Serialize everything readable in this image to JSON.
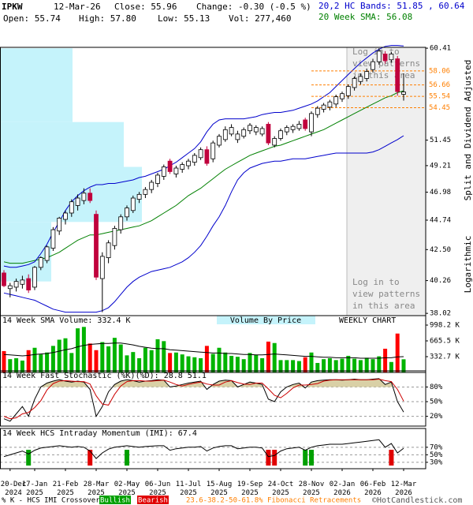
{
  "header": {
    "symbol": "IPKW",
    "date": "12-Mar-26",
    "close": "Close: 55.96",
    "change": "Change: -0.30 (-0.5 %)",
    "open": "Open: 55.74",
    "high": "High: 57.80",
    "low": "Low: 55.13",
    "volume": "Vol: 277,460"
  },
  "axis_notes": [
    "Split and Dividend Adjusted",
    "Logarithmic"
  ],
  "footer": {
    "copyright": "©HotCandlestick.com"
  },
  "chart_data": [
    {
      "type": "candlestick",
      "log_scale": true,
      "categories": [
        null,
        "20-Dec 2024",
        null,
        null,
        null,
        "17-Jan 2025",
        null,
        null,
        null,
        null,
        "21-Feb 2025",
        null,
        null,
        null,
        null,
        "28-Mar 2025",
        null,
        null,
        null,
        null,
        "02-May 2025",
        null,
        null,
        null,
        null,
        "06-Jun 2025",
        null,
        null,
        null,
        null,
        "11-Jul 2025",
        null,
        null,
        null,
        null,
        "15-Aug 2025",
        null,
        null,
        null,
        null,
        "19-Sep 2025",
        null,
        null,
        null,
        null,
        "24-Oct 2025",
        null,
        null,
        null,
        null,
        "28-Nov 2025",
        null,
        null,
        null,
        null,
        "02-Jan 2026",
        null,
        null,
        null,
        null,
        "06-Feb 2026",
        null,
        null,
        null,
        null,
        "12-Mar 2026"
      ],
      "open": [
        40.8,
        39.7,
        39.8,
        40.0,
        40.4,
        39.8,
        41.2,
        41.7,
        42.6,
        43.9,
        44.8,
        45.3,
        45.9,
        46.3,
        46.9,
        45.2,
        40.4,
        41.9,
        42.8,
        44.0,
        45.0,
        45.5,
        46.4,
        46.8,
        47.2,
        47.7,
        48.3,
        49.6,
        48.5,
        48.9,
        49.2,
        49.5,
        49.9,
        50.6,
        49.8,
        51.0,
        51.5,
        52.0,
        51.5,
        51.8,
        52.3,
        52.2,
        52.0,
        52.9,
        51.0,
        51.6,
        52.2,
        52.4,
        52.5,
        53.3,
        52.2,
        53.8,
        54.3,
        54.5,
        54.8,
        55.3,
        55.6,
        56.4,
        57.0,
        57.3,
        58.2,
        59.0,
        59.8,
        59.2,
        59.3,
        55.74
      ],
      "high": [
        41.0,
        40.1,
        40.4,
        40.6,
        40.7,
        41.3,
        42.0,
        42.8,
        44.2,
        45.0,
        45.5,
        46.4,
        46.8,
        47.3,
        47.3,
        45.5,
        42.3,
        43.2,
        44.3,
        45.2,
        45.9,
        46.7,
        47.0,
        47.4,
        48.0,
        48.6,
        49.3,
        49.8,
        49.2,
        49.5,
        49.8,
        50.3,
        50.8,
        50.9,
        51.4,
        52.0,
        52.7,
        52.9,
        52.3,
        52.6,
        53.0,
        52.8,
        52.7,
        53.1,
        51.8,
        52.5,
        52.8,
        52.9,
        53.2,
        53.5,
        54.1,
        54.6,
        54.9,
        55.2,
        55.7,
        56.0,
        56.7,
        57.5,
        57.8,
        58.3,
        59.3,
        60.4,
        60.1,
        60.0,
        59.6,
        57.8
      ],
      "low": [
        39.8,
        39.1,
        39.5,
        39.7,
        39.4,
        39.6,
        41.0,
        41.5,
        42.4,
        43.6,
        44.4,
        45.0,
        45.5,
        46.0,
        46.1,
        40.3,
        38.1,
        41.5,
        42.5,
        43.7,
        44.7,
        45.3,
        46.1,
        46.5,
        46.9,
        47.4,
        48.0,
        48.5,
        48.2,
        48.6,
        48.9,
        49.2,
        49.7,
        49.2,
        49.5,
        50.8,
        51.3,
        51.8,
        51.2,
        51.6,
        52.0,
        51.9,
        51.8,
        51.0,
        50.8,
        51.4,
        51.9,
        52.1,
        52.3,
        52.3,
        51.8,
        53.5,
        54.0,
        54.2,
        54.5,
        55.0,
        55.3,
        56.1,
        56.7,
        57.0,
        57.9,
        58.7,
        58.8,
        58.9,
        55.6,
        55.13
      ],
      "close": [
        39.9,
        39.9,
        40.2,
        40.3,
        39.6,
        41.2,
        41.9,
        42.7,
        44.0,
        44.9,
        45.3,
        46.2,
        46.5,
        46.9,
        46.3,
        40.5,
        42.0,
        43.0,
        44.1,
        45.0,
        45.7,
        46.5,
        46.8,
        47.2,
        47.8,
        48.4,
        49.1,
        48.7,
        49.0,
        49.3,
        49.6,
        50.1,
        50.6,
        49.4,
        51.2,
        51.8,
        52.4,
        52.6,
        52.0,
        52.4,
        52.8,
        52.6,
        52.5,
        51.2,
        51.6,
        52.3,
        52.6,
        52.7,
        52.9,
        52.5,
        53.9,
        54.4,
        54.7,
        55.0,
        55.5,
        55.8,
        56.5,
        57.3,
        57.5,
        58.0,
        59.0,
        60.1,
        59.1,
        59.8,
        56.0,
        55.96
      ],
      "up_color": "#ffffff",
      "down_color": "#c0003c",
      "series": [
        {
          "name": "20 Week SMA: 56.08",
          "color": "#008000",
          "values": [
            41.6,
            41.5,
            41.5,
            41.5,
            41.6,
            41.7,
            41.8,
            41.9,
            42.1,
            42.3,
            42.6,
            42.9,
            43.2,
            43.4,
            43.6,
            43.6,
            43.7,
            43.8,
            43.9,
            44.0,
            44.1,
            44.2,
            44.3,
            44.5,
            44.7,
            45.0,
            45.3,
            45.6,
            45.9,
            46.3,
            46.7,
            47.0,
            47.3,
            47.7,
            48.1,
            48.5,
            48.9,
            49.2,
            49.5,
            49.8,
            50.1,
            50.3,
            50.5,
            50.7,
            50.9,
            51.0,
            51.2,
            51.4,
            51.6,
            51.8,
            52.0,
            52.2,
            52.4,
            52.7,
            53.0,
            53.3,
            53.6,
            53.9,
            54.2,
            54.5,
            54.8,
            55.1,
            55.4,
            55.6,
            55.9,
            56.08
          ]
        },
        {
          "name": "20,2 HC Bands: 51.85 , 60.64",
          "color": "#0000cc",
          "values": [
            41.3,
            41.2,
            41.2,
            41.3,
            41.4,
            41.6,
            42.2,
            42.9,
            43.8,
            44.6,
            45.5,
            46.2,
            46.7,
            47.1,
            47.4,
            47.6,
            47.6,
            47.7,
            47.7,
            47.8,
            47.9,
            48.0,
            48.2,
            48.3,
            48.5,
            48.7,
            48.9,
            49.2,
            49.5,
            49.9,
            50.3,
            50.7,
            51.3,
            52.2,
            52.9,
            53.3,
            53.4,
            53.4,
            53.4,
            53.4,
            53.5,
            53.6,
            53.8,
            53.9,
            54.0,
            54.0,
            54.1,
            54.2,
            54.4,
            54.6,
            54.8,
            55.1,
            55.5,
            55.9,
            56.5,
            57.1,
            57.7,
            58.3,
            58.9,
            59.4,
            59.9,
            60.3,
            60.6,
            60.7,
            60.7,
            60.64
          ],
          "lower": [
            39.4,
            39.3,
            39.2,
            39.1,
            39.0,
            38.9,
            38.7,
            38.5,
            38.3,
            38.2,
            38.1,
            38.1,
            38.1,
            38.1,
            38.1,
            38.1,
            38.2,
            38.4,
            38.8,
            39.3,
            39.8,
            40.2,
            40.5,
            40.7,
            40.9,
            41.0,
            41.1,
            41.2,
            41.4,
            41.6,
            41.9,
            42.3,
            42.8,
            43.5,
            44.3,
            45.0,
            45.9,
            47.0,
            48.0,
            48.6,
            49.0,
            49.2,
            49.4,
            49.5,
            49.6,
            49.6,
            49.7,
            49.8,
            49.8,
            49.8,
            49.9,
            50.0,
            50.1,
            50.2,
            50.3,
            50.3,
            50.3,
            50.3,
            50.3,
            50.3,
            50.4,
            50.6,
            50.9,
            51.2,
            51.5,
            51.85
          ]
        }
      ],
      "volume_by_price": {
        "bins": [
          40.2,
          44.6,
          49.1,
          53.1,
          60.4
        ],
        "values": [
          65,
          180,
          157,
          92
        ],
        "color": "#c5f3fb"
      },
      "fibonacci": {
        "name": "23.6-38.2-50-61.8% Fibonacci Retracements",
        "levels": [
          58.06,
          56.66,
          55.54,
          54.45
        ],
        "color": "#ff7f00"
      },
      "patterns_notice": [
        "Log in to",
        "view patterns",
        "in this area"
      ],
      "ylim": [
        37.87,
        60.5
      ],
      "yticks": [
        38.02,
        40.26,
        {
          "value": 42.5,
          "label": "42.50"
        },
        44.74,
        46.98,
        49.21,
        51.45,
        60.41
      ]
    },
    {
      "type": "bar",
      "title": "14 Week SMA Volume: 332.4 K",
      "annotations": [
        "Volume By Price",
        "WEEKLY CHART"
      ],
      "values": [
        450000,
        280000,
        300000,
        250000,
        470000,
        520000,
        380000,
        420000,
        560000,
        690000,
        720000,
        410000,
        930000,
        960000,
        610000,
        470000,
        640000,
        550000,
        730000,
        590000,
        360000,
        430000,
        300000,
        520000,
        470000,
        700000,
        660000,
        410000,
        420000,
        380000,
        340000,
        320000,
        300000,
        560000,
        390000,
        520000,
        420000,
        350000,
        330000,
        280000,
        410000,
        370000,
        300000,
        650000,
        620000,
        260000,
        260000,
        260000,
        240000,
        320000,
        420000,
        200000,
        280000,
        300000,
        260000,
        290000,
        350000,
        290000,
        260000,
        310000,
        280000,
        340000,
        500000,
        220000,
        820000,
        277460
      ],
      "colors": [
        "#ff0000",
        "#00b400",
        "#00b400",
        "#00b400",
        "#ff0000",
        "#00b400",
        "#00b400",
        "#00b400",
        "#00b400",
        "#00b400",
        "#00b400",
        "#00b400",
        "#00b400",
        "#00b400",
        "#ff0000",
        "#ff0000",
        "#00b400",
        "#00b400",
        "#00b400",
        "#00b400",
        "#00b400",
        "#00b400",
        "#00b400",
        "#00b400",
        "#00b400",
        "#00b400",
        "#00b400",
        "#ff0000",
        "#00b400",
        "#00b400",
        "#00b400",
        "#00b400",
        "#00b400",
        "#ff0000",
        "#00b400",
        "#00b400",
        "#00b400",
        "#00b400",
        "#00b400",
        "#00b400",
        "#00b400",
        "#00b400",
        "#00b400",
        "#ff0000",
        "#00b400",
        "#00b400",
        "#00b400",
        "#00b400",
        "#00b400",
        "#ff0000",
        "#00b400",
        "#00b400",
        "#00b400",
        "#00b400",
        "#00b400",
        "#00b400",
        "#00b400",
        "#00b400",
        "#00b400",
        "#00b400",
        "#00b400",
        "#00b400",
        "#ff0000",
        "#00b400",
        "#ff0000",
        "#00b400"
      ],
      "sma": [
        380000,
        370000,
        360000,
        350000,
        360000,
        380000,
        390000,
        400000,
        420000,
        450000,
        480000,
        500000,
        540000,
        570000,
        590000,
        600000,
        610000,
        610000,
        620000,
        620000,
        600000,
        580000,
        550000,
        530000,
        510000,
        500000,
        500000,
        480000,
        470000,
        460000,
        450000,
        440000,
        430000,
        420000,
        410000,
        410000,
        400000,
        400000,
        390000,
        380000,
        380000,
        370000,
        370000,
        380000,
        390000,
        380000,
        370000,
        360000,
        350000,
        340000,
        340000,
        330000,
        320000,
        320000,
        310000,
        310000,
        310000,
        310000,
        300000,
        300000,
        300000,
        300000,
        310000,
        310000,
        330000,
        332400
      ],
      "sma_color": "#000000",
      "ylim": [
        0,
        1198000
      ],
      "yticks": [
        {
          "value": 332700,
          "label": "332.7 K"
        },
        {
          "value": 665500,
          "label": "665.5 K"
        },
        {
          "value": 998200,
          "label": "998.2 K"
        }
      ]
    },
    {
      "type": "line",
      "title": "14 Week Fast Stochastic (%K)(%D): 28.8 51.1",
      "grid": true,
      "fill_color": "#d9d0a6",
      "series": [
        {
          "color": "#000000",
          "values": [
            15,
            10,
            25,
            40,
            20,
            55,
            80,
            88,
            92,
            95,
            92,
            90,
            92,
            90,
            75,
            20,
            40,
            70,
            85,
            92,
            95,
            93,
            90,
            92,
            93,
            95,
            94,
            80,
            82,
            85,
            88,
            90,
            92,
            75,
            85,
            92,
            94,
            93,
            80,
            85,
            90,
            88,
            85,
            55,
            50,
            70,
            80,
            85,
            88,
            78,
            90,
            93,
            94,
            95,
            95,
            94,
            95,
            96,
            95,
            95,
            96,
            97,
            85,
            90,
            50,
            28.8
          ]
        },
        {
          "color": "#cc0000",
          "values": [
            20,
            15,
            17,
            25,
            28,
            38,
            52,
            74,
            87,
            92,
            93,
            92,
            91,
            91,
            86,
            62,
            45,
            43,
            65,
            82,
            91,
            93,
            93,
            92,
            92,
            93,
            94,
            90,
            85,
            82,
            85,
            88,
            90,
            86,
            84,
            84,
            90,
            93,
            89,
            86,
            85,
            88,
            88,
            76,
            63,
            58,
            67,
            78,
            84,
            84,
            85,
            87,
            92,
            94,
            95,
            95,
            95,
            95,
            95,
            95,
            95,
            96,
            93,
            91,
            75,
            51.1
          ]
        }
      ],
      "ylim": [
        0,
        113
      ],
      "yticks": [
        {
          "value": 20,
          "label": "20%"
        },
        {
          "value": 50,
          "label": "50%"
        },
        {
          "value": 80,
          "label": "80%"
        }
      ]
    },
    {
      "type": "line",
      "title": "14 Week HCS Intraday Momentum (IMI): 67.4",
      "grid": true,
      "color": "#000000",
      "values": [
        45,
        50,
        55,
        60,
        52,
        62,
        68,
        70,
        72,
        74,
        72,
        70,
        72,
        70,
        60,
        40,
        55,
        65,
        70,
        72,
        74,
        72,
        70,
        72,
        73,
        74,
        74,
        62,
        66,
        68,
        70,
        70,
        72,
        60,
        68,
        72,
        74,
        74,
        66,
        68,
        70,
        70,
        68,
        45,
        48,
        60,
        66,
        68,
        70,
        62,
        70,
        74,
        76,
        78,
        78,
        78,
        80,
        82,
        84,
        86,
        88,
        90,
        70,
        80,
        55,
        67.4
      ],
      "crossovers": [
        {
          "x": 4,
          "type": "bullish"
        },
        {
          "x": 14,
          "type": "bearish"
        },
        {
          "x": 20,
          "type": "bullish"
        },
        {
          "x": 43,
          "type": "bearish"
        },
        {
          "x": 44,
          "type": "bearish"
        },
        {
          "x": 49,
          "type": "bullish"
        },
        {
          "x": 50,
          "type": "bullish"
        },
        {
          "x": 63,
          "type": "bearish"
        }
      ],
      "crossover_legend": {
        "label": "% K - HCS IMI Crossover,",
        "bullish": {
          "label": "Bullish",
          "color": "#00a000"
        },
        "bearish": {
          "label": "Bearish",
          "color": "#e00000"
        }
      },
      "ylim": [
        13,
        120
      ],
      "yticks": [
        {
          "value": 30,
          "label": "30%"
        },
        {
          "value": 50,
          "label": "50%"
        },
        {
          "value": 70,
          "label": "70%"
        }
      ]
    }
  ]
}
